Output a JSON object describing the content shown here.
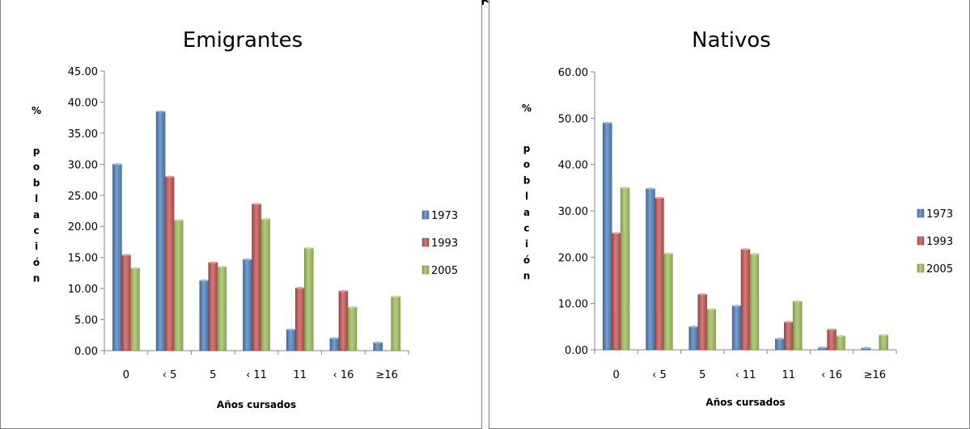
{
  "chart_data": [
    {
      "type": "bar",
      "title": "Emigrantes",
      "xlabel": "Años cursados",
      "ylabel": "% población",
      "ylim": [
        0,
        45
      ],
      "yticks": [
        "0.00",
        "5.00",
        "10.00",
        "15.00",
        "20.00",
        "25.00",
        "30.00",
        "35.00",
        "40.00",
        "45.00"
      ],
      "categories": [
        "0",
        "‹ 5",
        "5",
        "‹ 11",
        "11",
        "‹ 16",
        "≥16"
      ],
      "series": [
        {
          "name": "1973",
          "color": "#4a7ebb",
          "values": [
            30.0,
            38.5,
            11.3,
            14.7,
            3.4,
            2.0,
            1.3
          ]
        },
        {
          "name": "1993",
          "color": "#c0504d",
          "values": [
            15.4,
            28.0,
            14.2,
            23.6,
            10.1,
            9.6,
            0.0
          ]
        },
        {
          "name": "2005",
          "color": "#9bbb59",
          "values": [
            13.3,
            21.0,
            13.5,
            21.2,
            16.5,
            7.0,
            8.7
          ]
        }
      ],
      "legend_position": "right",
      "grid": false
    },
    {
      "type": "bar",
      "title": "Nativos",
      "xlabel": "Años cursados",
      "ylabel": "% población",
      "ylim": [
        0,
        60
      ],
      "yticks": [
        "0.00",
        "10.00",
        "20.00",
        "30.00",
        "40.00",
        "50.00",
        "60.00"
      ],
      "categories": [
        "0",
        "‹ 5",
        "5",
        "‹ 11",
        "11",
        "‹ 16",
        "≥16"
      ],
      "series": [
        {
          "name": "1973",
          "color": "#4a7ebb",
          "values": [
            49.0,
            34.8,
            5.0,
            9.5,
            2.4,
            0.5,
            0.4
          ]
        },
        {
          "name": "1993",
          "color": "#c0504d",
          "values": [
            25.2,
            32.8,
            12.0,
            21.7,
            6.0,
            4.4,
            0.0
          ]
        },
        {
          "name": "2005",
          "color": "#9bbb59",
          "values": [
            35.0,
            20.8,
            8.8,
            20.7,
            10.5,
            3.0,
            3.2
          ]
        }
      ],
      "legend_position": "right",
      "grid": false
    }
  ]
}
